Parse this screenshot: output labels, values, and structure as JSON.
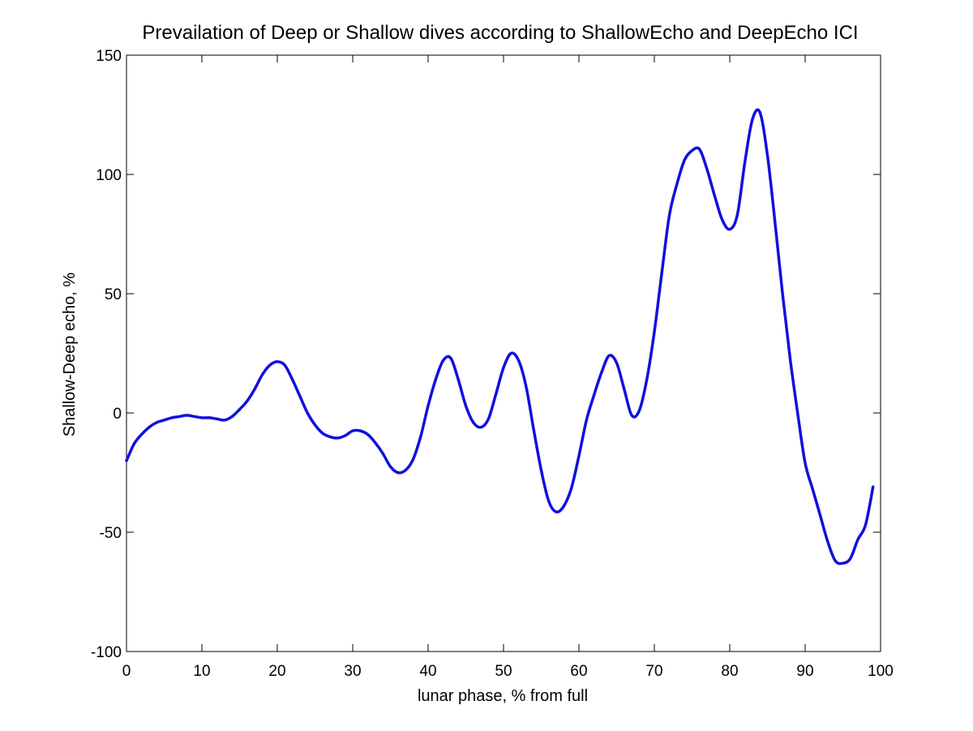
{
  "chart_data": {
    "type": "line",
    "title": "Prevailation of Deep or Shallow dives according to ShallowEcho and DeepEcho ICI",
    "xlabel": "lunar phase, % from full",
    "ylabel": "Shallow-Deep echo, %",
    "xlim": [
      0,
      100
    ],
    "ylim": [
      -100,
      150
    ],
    "xticks": [
      0,
      10,
      20,
      30,
      40,
      50,
      60,
      70,
      80,
      90,
      100
    ],
    "yticks": [
      -100,
      -50,
      0,
      50,
      100,
      150
    ],
    "grid": false,
    "line_color": "#1010e0",
    "series": [
      {
        "name": "Shallow-Deep echo",
        "x": [
          0,
          1,
          2,
          3,
          4,
          5,
          6,
          7,
          8,
          9,
          10,
          11,
          12,
          13,
          14,
          15,
          16,
          17,
          18,
          19,
          20,
          21,
          22,
          23,
          24,
          25,
          26,
          27,
          28,
          29,
          30,
          31,
          32,
          33,
          34,
          35,
          36,
          37,
          38,
          39,
          40,
          41,
          42,
          43,
          44,
          45,
          46,
          47,
          48,
          49,
          50,
          51,
          52,
          53,
          54,
          55,
          56,
          57,
          58,
          59,
          60,
          61,
          62,
          63,
          64,
          65,
          66,
          67,
          68,
          69,
          70,
          71,
          72,
          73,
          74,
          75,
          76,
          77,
          78,
          79,
          80,
          81,
          82,
          83,
          84,
          85,
          86,
          87,
          88,
          89,
          90,
          91,
          92,
          93,
          94,
          95,
          96,
          97,
          98,
          99
        ],
        "values": [
          -20,
          -13,
          -9,
          -6,
          -4,
          -3,
          -2,
          -1.5,
          -1,
          -1.5,
          -2,
          -2,
          -2.5,
          -3,
          -1.5,
          1.5,
          5,
          10,
          16,
          20,
          21.5,
          20,
          14,
          7,
          0,
          -5,
          -8.5,
          -10,
          -10.5,
          -9.5,
          -7.5,
          -7.5,
          -9,
          -12.5,
          -17,
          -22.5,
          -25,
          -24,
          -19.5,
          -10,
          3,
          14,
          22,
          23,
          14,
          3,
          -4,
          -6,
          -2.5,
          8,
          19,
          25,
          22,
          11,
          -7,
          -24,
          -37,
          -41.5,
          -39,
          -31.5,
          -18,
          -3,
          7.5,
          17,
          24,
          21,
          10,
          -1,
          1,
          14,
          34,
          59,
          83,
          96,
          106,
          110,
          110.5,
          102,
          91,
          81,
          77,
          83,
          105,
          123,
          126,
          108,
          80,
          50,
          23,
          0,
          -21,
          -32,
          -43,
          -54,
          -62,
          -63,
          -61,
          -53,
          -47,
          -31
        ]
      }
    ]
  }
}
